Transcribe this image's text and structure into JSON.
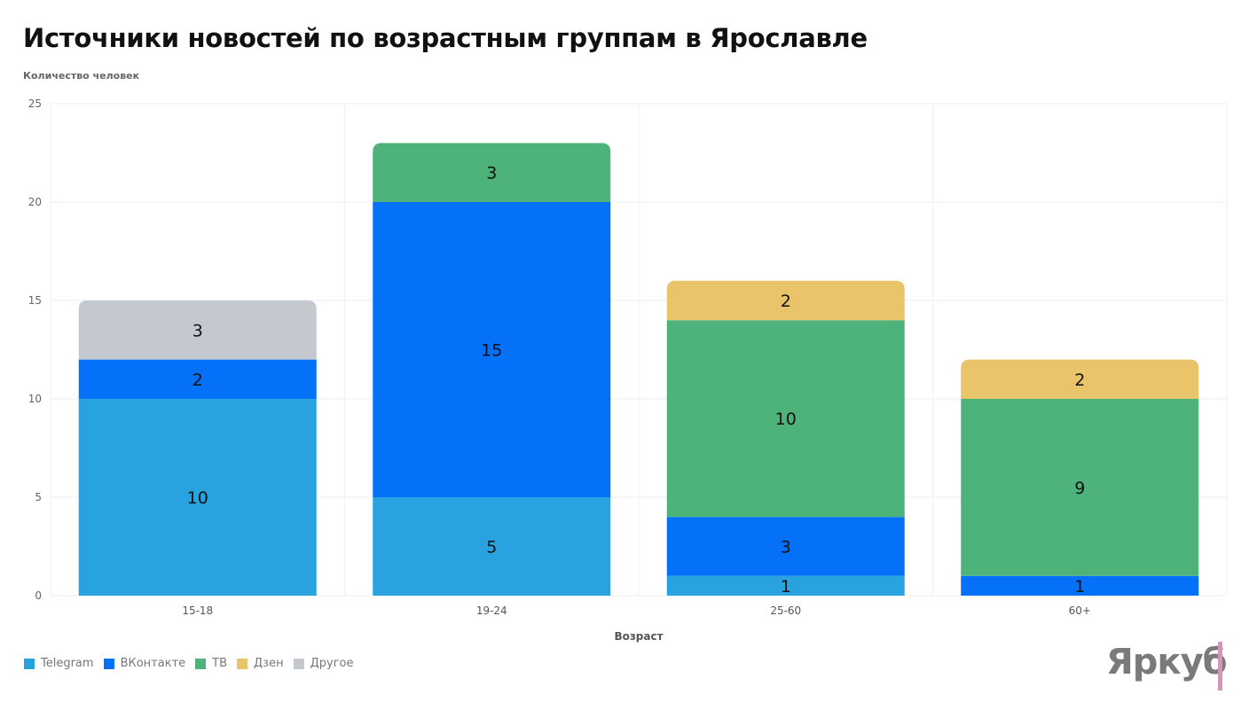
{
  "chart_data": {
    "type": "bar",
    "stacked": true,
    "title": "Источники новостей по возрастным группам в Ярославле",
    "ylabel": "Количество человек",
    "xlabel": "Возраст",
    "ylim": [
      0,
      25
    ],
    "yticks": [
      0,
      5,
      10,
      15,
      20,
      25
    ],
    "grid": true,
    "legend_position": "bottom-left",
    "categories": [
      "15-18",
      "19-24",
      "25-60",
      "60+"
    ],
    "series": [
      {
        "name": "Telegram",
        "color": "#29a3e0",
        "values": [
          10,
          5,
          1,
          0
        ]
      },
      {
        "name": "ВКонтакте",
        "color": "#0571f8",
        "values": [
          2,
          15,
          3,
          1
        ]
      },
      {
        "name": "ТВ",
        "color": "#4eb27b",
        "values": [
          0,
          3,
          10,
          9
        ]
      },
      {
        "name": "Дзен",
        "color": "#e9c46a",
        "values": [
          0,
          0,
          2,
          2
        ]
      },
      {
        "name": "Другое",
        "color": "#c4c9d0",
        "values": [
          3,
          0,
          0,
          0
        ]
      }
    ]
  },
  "logo": "Яркуб"
}
